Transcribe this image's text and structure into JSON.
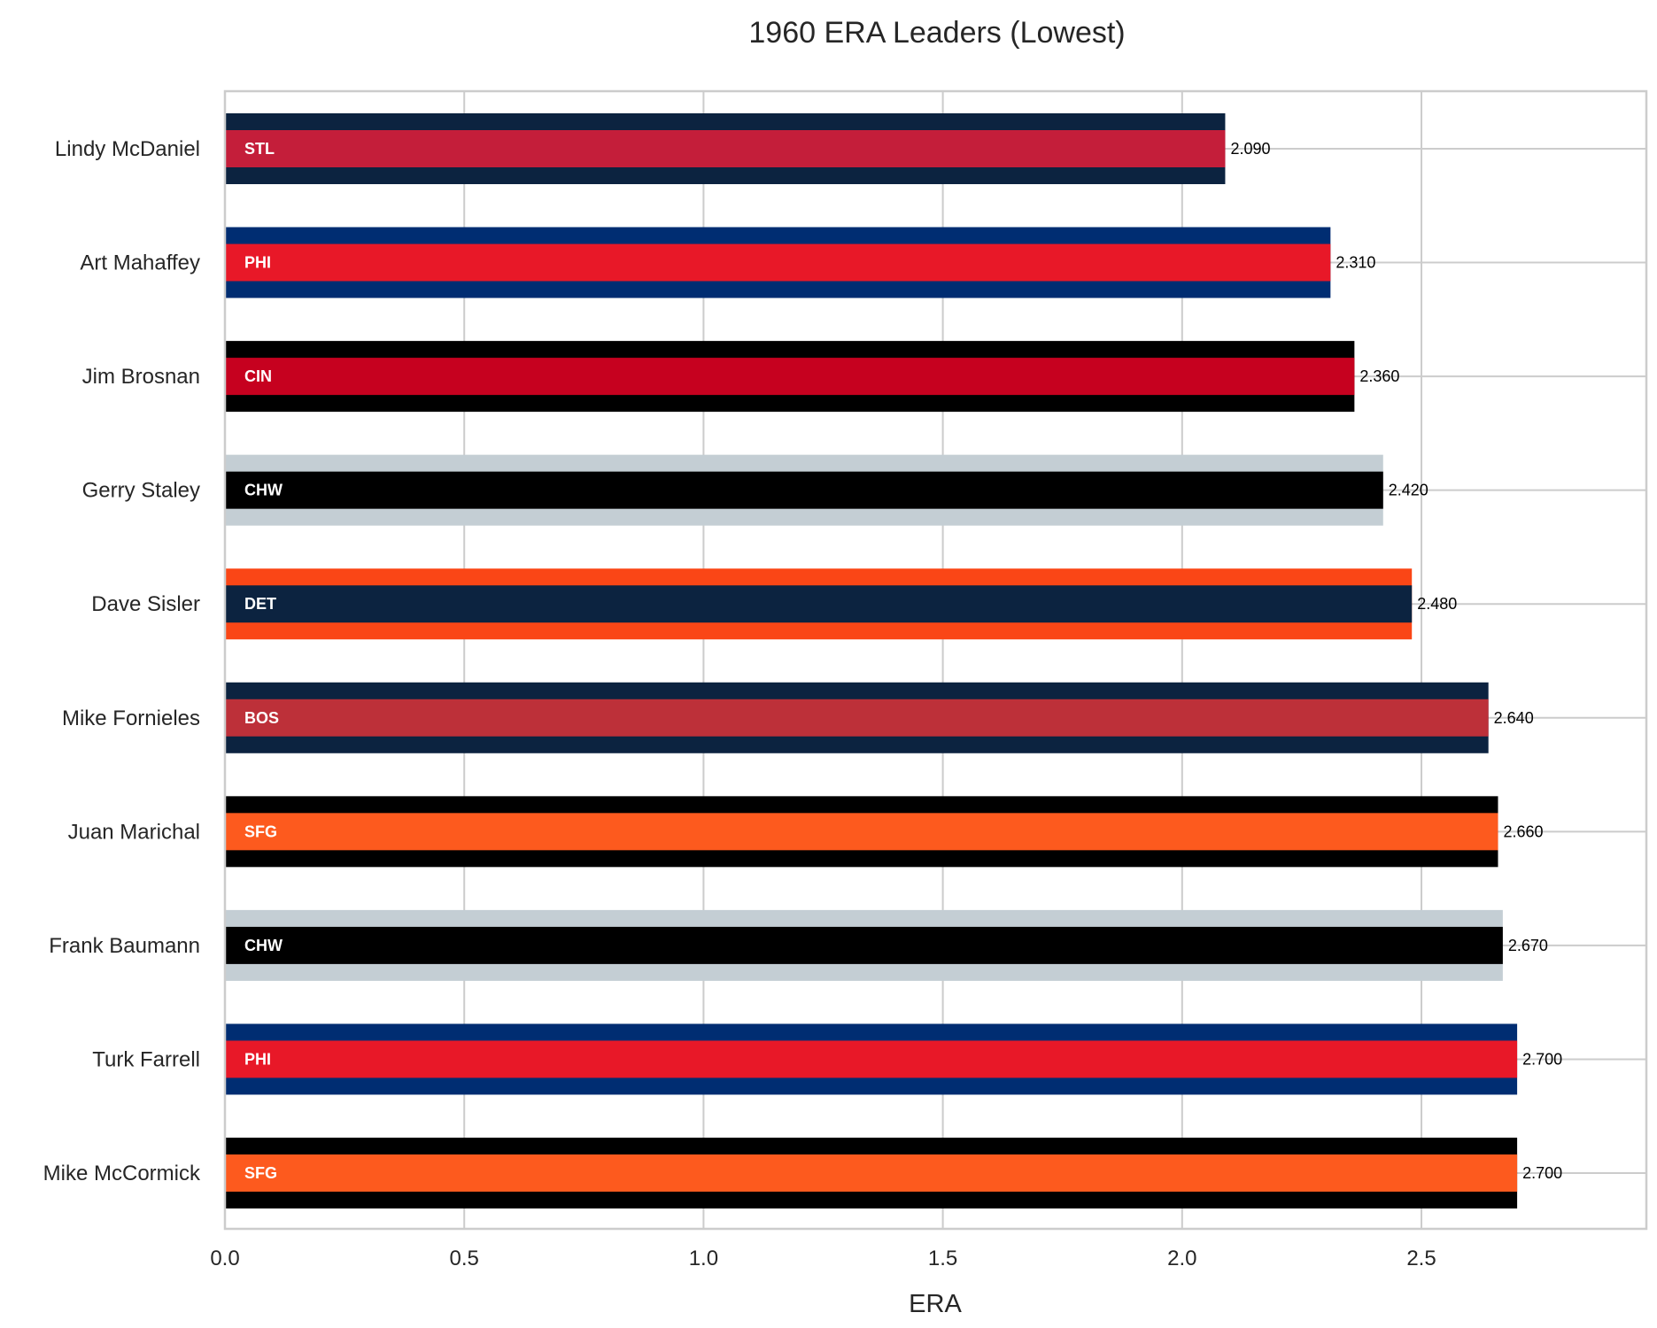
{
  "chart_data": {
    "type": "bar",
    "orientation": "horizontal",
    "title": "1960 ERA Leaders (Lowest)",
    "xlabel": "ERA",
    "ylabel": "",
    "xlim": [
      0,
      2.97
    ],
    "xticks": [
      "0.0",
      "0.5",
      "1.0",
      "1.5",
      "2.0",
      "2.5"
    ],
    "grid": true,
    "bars": [
      {
        "player": "Lindy McDaniel",
        "team": "STL",
        "value": 2.09,
        "label": "2.090",
        "outer_color": "#0c2340",
        "inner_color": "#c41e3a"
      },
      {
        "player": "Art Mahaffey",
        "team": "PHI",
        "value": 2.31,
        "label": "2.310",
        "outer_color": "#002d72",
        "inner_color": "#e81828"
      },
      {
        "player": "Jim Brosnan",
        "team": "CIN",
        "value": 2.36,
        "label": "2.360",
        "outer_color": "#000000",
        "inner_color": "#c6011f"
      },
      {
        "player": "Gerry Staley",
        "team": "CHW",
        "value": 2.42,
        "label": "2.420",
        "outer_color": "#c4ced4",
        "inner_color": "#000000"
      },
      {
        "player": "Dave Sisler",
        "team": "DET",
        "value": 2.48,
        "label": "2.480",
        "outer_color": "#fa4616",
        "inner_color": "#0c2340"
      },
      {
        "player": "Mike Fornieles",
        "team": "BOS",
        "value": 2.64,
        "label": "2.640",
        "outer_color": "#0c2340",
        "inner_color": "#bd3039"
      },
      {
        "player": "Juan Marichal",
        "team": "SFG",
        "value": 2.66,
        "label": "2.660",
        "outer_color": "#000000",
        "inner_color": "#fd5a1e"
      },
      {
        "player": "Frank Baumann",
        "team": "CHW",
        "value": 2.67,
        "label": "2.670",
        "outer_color": "#c4ced4",
        "inner_color": "#000000"
      },
      {
        "player": "Turk Farrell",
        "team": "PHI",
        "value": 2.7,
        "label": "2.700",
        "outer_color": "#002d72",
        "inner_color": "#e81828"
      },
      {
        "player": "Mike McCormick",
        "team": "SFG",
        "value": 2.7,
        "label": "2.700",
        "outer_color": "#000000",
        "inner_color": "#fd5a1e"
      }
    ]
  }
}
